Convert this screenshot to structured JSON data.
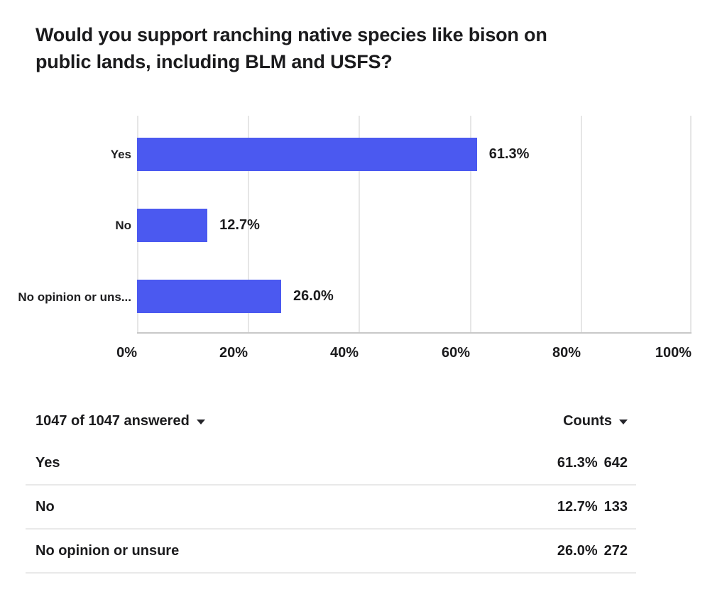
{
  "title": "Would you support ranching native species like bison on public lands, including BLM and USFS?",
  "title_line1": "Would you support ranching native species like bison on",
  "title_line2": "public lands, including BLM and USFS?",
  "colors": {
    "bar": "#4b59f0",
    "text": "#1b1b1d",
    "gridline": "#e6e6e6",
    "axis": "#c8c8c8",
    "divider": "#e9e9e9"
  },
  "chart_data": {
    "type": "bar",
    "orientation": "horizontal",
    "title": "Would you support ranching native species like bison on public lands, including BLM and USFS?",
    "categories": [
      "Yes",
      "No",
      "No opinion or unsure"
    ],
    "category_labels_shown": [
      "Yes",
      "No",
      "No opinion or uns..."
    ],
    "values": [
      61.3,
      12.7,
      26.0
    ],
    "value_labels": [
      "61.3%",
      "12.7%",
      "26.0%"
    ],
    "counts": [
      642,
      133,
      272
    ],
    "x_ticks": [
      "0%",
      "20%",
      "40%",
      "60%",
      "80%",
      "100%"
    ],
    "xlim": [
      0,
      100
    ],
    "grid": true,
    "legend": "none",
    "bar_color": "#4b59f0"
  },
  "table": {
    "answered_label": "1047 of 1047 answered",
    "counts_label": "Counts",
    "rows": [
      {
        "label": "Yes",
        "percent": "61.3%",
        "count": "642"
      },
      {
        "label": "No",
        "percent": "12.7%",
        "count": "133"
      },
      {
        "label": "No opinion or unsure",
        "percent": "26.0%",
        "count": "272"
      }
    ]
  }
}
